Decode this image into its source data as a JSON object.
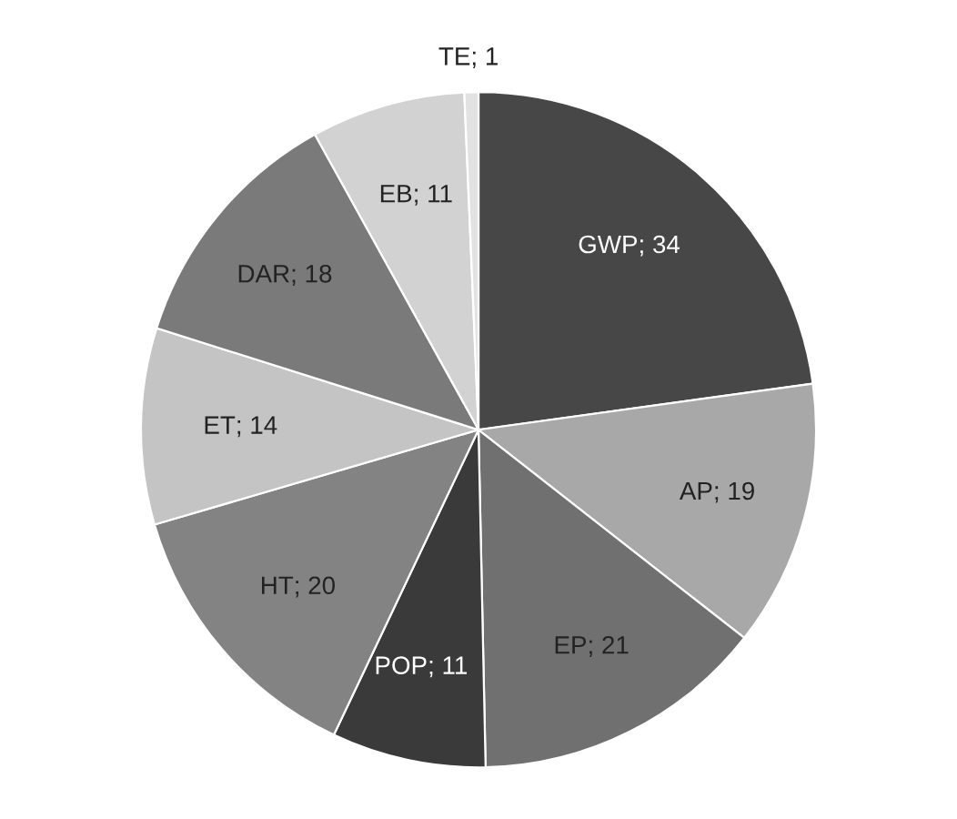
{
  "chart_data": {
    "type": "pie",
    "categories": [
      "GWP",
      "AP",
      "EP",
      "POP",
      "HT",
      "ET",
      "DAR",
      "EB",
      "TE"
    ],
    "values": [
      34,
      19,
      21,
      11,
      20,
      14,
      18,
      11,
      1
    ],
    "colors": [
      "#474747",
      "#a8a8a8",
      "#707070",
      "#3a3a3a",
      "#838383",
      "#c4c4c4",
      "#7a7a7a",
      "#d2d2d2",
      "#e2e2e2"
    ],
    "value_labels": [
      "; 34",
      "; 19",
      "; 21",
      "; 11",
      "; 20",
      "; 14",
      "; 18",
      "; 11",
      "; 1"
    ]
  }
}
